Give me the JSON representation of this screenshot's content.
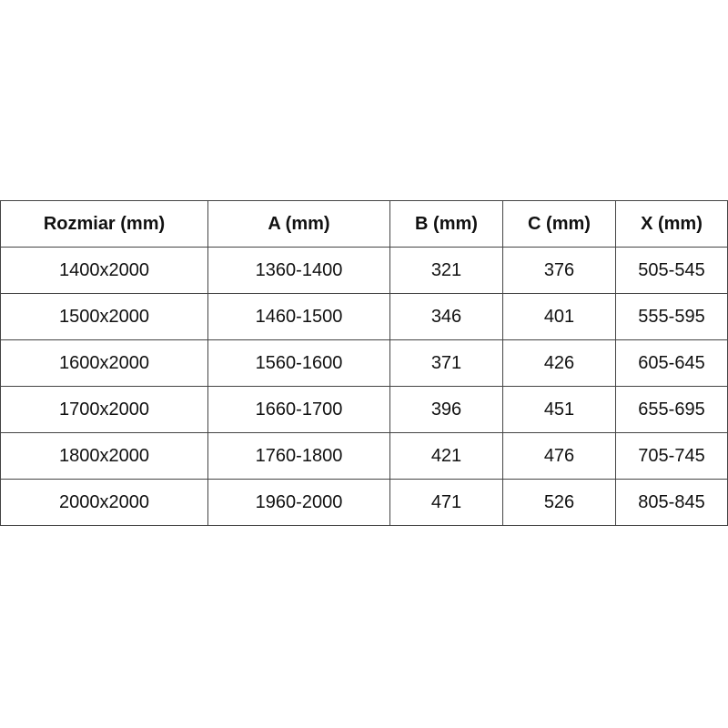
{
  "table": {
    "headers": [
      "Rozmiar (mm)",
      "A (mm)",
      "B (mm)",
      "C (mm)",
      "X (mm)"
    ],
    "rows": [
      [
        "1400x2000",
        "1360-1400",
        "321",
        "376",
        "505-545"
      ],
      [
        "1500x2000",
        "1460-1500",
        "346",
        "401",
        "555-595"
      ],
      [
        "1600x2000",
        "1560-1600",
        "371",
        "426",
        "605-645"
      ],
      [
        "1700x2000",
        "1660-1700",
        "396",
        "451",
        "655-695"
      ],
      [
        "1800x2000",
        "1760-1800",
        "421",
        "476",
        "705-745"
      ],
      [
        "2000x2000",
        "1960-2000",
        "471",
        "526",
        "805-845"
      ]
    ]
  }
}
